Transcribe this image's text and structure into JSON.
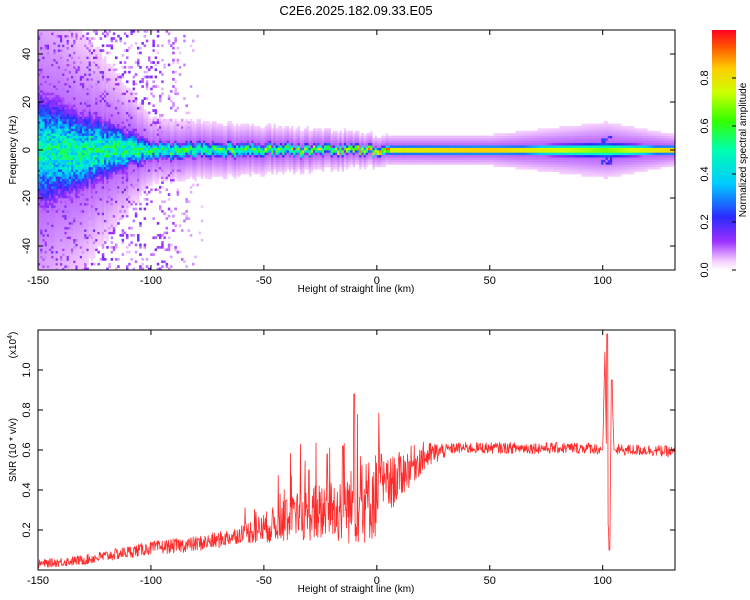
{
  "title": "C2E6.2025.182.09.33.E05",
  "chart_data": [
    {
      "type": "heatmap",
      "xlabel": "Height of straight line (km)",
      "ylabel": "Frequency (Hz)",
      "xlim": [
        -150,
        132
      ],
      "ylim": [
        -50,
        50
      ],
      "xticks": [
        -150,
        -100,
        -50,
        0,
        50,
        100
      ],
      "xtick_labels": [
        "-150",
        "-100",
        "-50",
        "0",
        "50",
        "100"
      ],
      "yticks": [
        -40,
        -20,
        0,
        20,
        40
      ],
      "ytick_labels": [
        "-40",
        "-20",
        "0",
        "20",
        "40"
      ],
      "colorbar": {
        "label": "Normalized spectral amplitude",
        "range": [
          0,
          1
        ],
        "ticks": [
          0.0,
          0.2,
          0.4,
          0.6,
          0.8
        ],
        "tick_labels": [
          "0.0",
          "0.2",
          "0.4",
          "0.6",
          "0.8"
        ],
        "colormap": "rainbow (white-violet-blue-cyan-green-yellow-red)"
      },
      "ridge": {
        "center_frequency_hz": 0,
        "description_points": [
          {
            "x": -150,
            "spread_hz": 40,
            "peak": 0.5
          },
          {
            "x": -100,
            "spread_hz": 6,
            "peak": 0.55
          },
          {
            "x": -50,
            "spread_hz": 4,
            "peak": 0.65
          },
          {
            "x": -20,
            "spread_hz": 3,
            "peak": 0.75
          },
          {
            "x": 0,
            "spread_hz": 2,
            "peak": 0.85
          },
          {
            "x": 50,
            "spread_hz": 2,
            "peak": 0.95
          },
          {
            "x": 101,
            "spread_hz": 5,
            "peak": 0.7
          },
          {
            "x": 132,
            "spread_hz": 2,
            "peak": 0.95
          }
        ]
      }
    },
    {
      "type": "line",
      "xlabel": "Height of straight line (km)",
      "ylabel": "SNR (10 * v/v)",
      "y_multiplier_label": "(x10",
      "y_multiplier_exp": "4",
      "y_multiplier_close": ")",
      "xlim": [
        -150,
        132
      ],
      "ylim": [
        0,
        1.2
      ],
      "xticks": [
        -150,
        -100,
        -50,
        0,
        50,
        100
      ],
      "xtick_labels": [
        "-150",
        "-100",
        "-50",
        "0",
        "50",
        "100"
      ],
      "yticks": [
        0.2,
        0.4,
        0.6,
        0.8,
        1.0
      ],
      "ytick_labels": [
        "0.2",
        "0.4",
        "0.6",
        "0.8",
        "1.0"
      ],
      "color": "#ff2a2a",
      "series": [
        {
          "x": [
            -150,
            -140,
            -130,
            -120,
            -110,
            -100,
            -90,
            -80,
            -70,
            -60,
            -50,
            -40,
            -30,
            -20,
            -15,
            -10,
            -5,
            0,
            5,
            10,
            15,
            20,
            25,
            30,
            35,
            40,
            50,
            60,
            70,
            80,
            90,
            95,
            100,
            101,
            102,
            103,
            104,
            105,
            110,
            120,
            132
          ],
          "y": [
            0.03,
            0.04,
            0.05,
            0.07,
            0.09,
            0.11,
            0.12,
            0.13,
            0.15,
            0.18,
            0.21,
            0.25,
            0.28,
            0.3,
            0.31,
            0.32,
            0.34,
            0.38,
            0.42,
            0.47,
            0.52,
            0.56,
            0.58,
            0.6,
            0.61,
            0.61,
            0.61,
            0.61,
            0.61,
            0.61,
            0.61,
            0.61,
            0.6,
            1.1,
            0.3,
            0.12,
            0.95,
            0.6,
            0.6,
            0.6,
            0.59
          ]
        }
      ],
      "spikes": [
        {
          "x": -10,
          "y": 0.88
        },
        {
          "x": -15,
          "y": 0.62
        },
        {
          "x": -22,
          "y": 0.58
        },
        {
          "x": -30,
          "y": 0.5
        },
        {
          "x": -40,
          "y": 0.35
        },
        {
          "x": 2,
          "y": 0.58
        },
        {
          "x": 102,
          "y": 1.18
        },
        {
          "x": 104,
          "y": 0.95
        },
        {
          "x": 103,
          "y": 0.1
        }
      ]
    }
  ]
}
